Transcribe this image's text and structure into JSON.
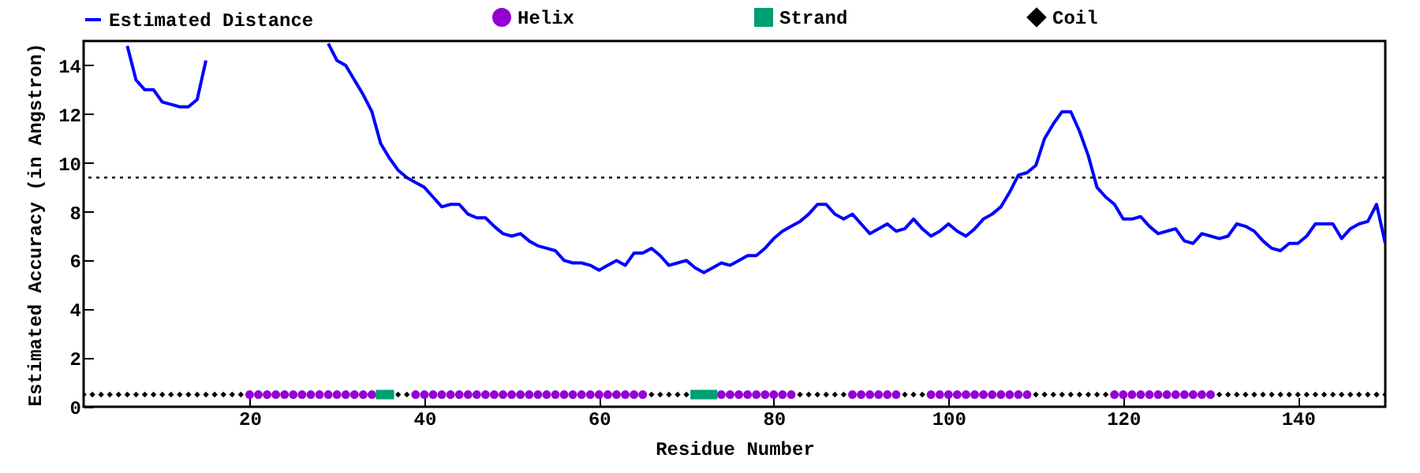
{
  "chart_data": {
    "type": "line",
    "xlabel": "Residue Number",
    "ylabel": "Estimated Accuracy (in Angstron)",
    "xlim": [
      1,
      150
    ],
    "xticks": [
      20,
      40,
      60,
      80,
      100,
      120,
      140
    ],
    "ylim": [
      0,
      15
    ],
    "yticks": [
      0,
      2,
      4,
      6,
      8,
      10,
      12,
      14
    ],
    "grid": false,
    "legend": "top",
    "ref_lines": [
      {
        "axis": "y",
        "value": 9.4,
        "color": "#000000",
        "line_style": "dotted"
      }
    ],
    "series": [
      {
        "name": "Estimated Distance",
        "color": "#0000ff",
        "marker": "none",
        "line_style": "solid",
        "x": [
          6,
          7,
          8,
          9,
          10,
          11,
          12,
          13,
          14,
          15,
          16,
          17,
          18,
          19,
          20,
          21,
          22,
          23,
          24,
          25,
          26,
          27,
          28,
          29,
          30,
          31,
          32,
          33,
          34,
          35,
          36,
          37,
          38,
          39,
          40,
          41,
          42,
          43,
          44,
          45,
          46,
          47,
          48,
          49,
          50,
          51,
          52,
          53,
          54,
          55,
          56,
          57,
          58,
          59,
          60,
          61,
          62,
          63,
          64,
          65,
          66,
          67,
          68,
          69,
          70,
          71,
          72,
          73,
          74,
          75,
          76,
          77,
          78,
          79,
          80,
          81,
          82,
          83,
          84,
          85,
          86,
          87,
          88,
          89,
          90,
          91,
          92,
          93,
          94,
          95,
          96,
          97,
          98,
          99,
          100,
          101,
          102,
          103,
          104,
          105,
          106,
          107,
          108,
          109,
          110,
          111,
          112,
          113,
          114,
          115,
          116,
          117,
          118,
          119,
          120,
          121,
          122,
          123,
          124,
          125,
          126,
          127,
          128,
          129,
          130,
          131,
          132,
          133,
          134,
          135,
          136,
          137,
          138,
          139,
          140,
          141,
          142,
          143,
          144,
          145,
          146,
          147,
          148,
          149,
          150
        ],
        "values": [
          14.8,
          13.4,
          13.0,
          13.0,
          12.5,
          12.4,
          12.3,
          12.3,
          12.6,
          14.2,
          null,
          null,
          null,
          null,
          null,
          null,
          null,
          null,
          null,
          null,
          null,
          null,
          null,
          14.9,
          14.2,
          14.0,
          13.4,
          12.8,
          12.1,
          10.8,
          10.2,
          9.7,
          9.4,
          9.2,
          9.0,
          8.6,
          8.2,
          8.3,
          8.3,
          7.9,
          7.75,
          7.75,
          7.4,
          7.1,
          7.0,
          7.1,
          6.8,
          6.6,
          6.5,
          6.4,
          6.0,
          5.9,
          5.9,
          5.8,
          5.6,
          5.8,
          6.0,
          5.8,
          6.3,
          6.3,
          6.5,
          6.2,
          5.8,
          5.9,
          6.0,
          5.7,
          5.5,
          5.7,
          5.9,
          5.8,
          6.0,
          6.2,
          6.2,
          6.5,
          6.9,
          7.2,
          7.4,
          7.6,
          7.9,
          8.3,
          8.3,
          7.9,
          7.7,
          7.9,
          7.5,
          7.1,
          7.3,
          7.5,
          7.2,
          7.3,
          7.7,
          7.3,
          7.0,
          7.2,
          7.5,
          7.2,
          7.0,
          7.3,
          7.7,
          7.9,
          8.2,
          8.8,
          9.5,
          9.6,
          9.9,
          11.0,
          11.6,
          12.1,
          12.1,
          11.3,
          10.3,
          9.0,
          8.6,
          8.3,
          7.7,
          7.7,
          7.8,
          7.4,
          7.1,
          7.2,
          7.3,
          6.8,
          6.7,
          7.1,
          7.0,
          6.9,
          7.0,
          7.5,
          7.4,
          7.2,
          6.8,
          6.5,
          6.4,
          6.7,
          6.7,
          7.0,
          7.5,
          7.5,
          7.5,
          6.9,
          7.3,
          7.5,
          7.6,
          8.3,
          6.7
        ]
      },
      {
        "name": "Helix",
        "type": "scatter",
        "color": "#9400d3",
        "marker": "circle",
        "x": [
          20,
          21,
          22,
          23,
          24,
          25,
          26,
          27,
          28,
          29,
          30,
          31,
          32,
          33,
          34,
          39,
          40,
          41,
          42,
          43,
          44,
          45,
          46,
          47,
          48,
          49,
          50,
          51,
          52,
          53,
          54,
          55,
          56,
          57,
          58,
          59,
          60,
          61,
          62,
          63,
          64,
          65,
          74,
          75,
          76,
          77,
          78,
          79,
          80,
          81,
          82,
          89,
          90,
          91,
          92,
          93,
          94,
          98,
          99,
          100,
          101,
          102,
          103,
          104,
          105,
          106,
          107,
          108,
          109,
          119,
          120,
          121,
          122,
          123,
          124,
          125,
          126,
          127,
          128,
          129,
          130
        ],
        "values": [
          0.5,
          0.5,
          0.5,
          0.5,
          0.5,
          0.5,
          0.5,
          0.5,
          0.5,
          0.5,
          0.5,
          0.5,
          0.5,
          0.5,
          0.5,
          0.5,
          0.5,
          0.5,
          0.5,
          0.5,
          0.5,
          0.5,
          0.5,
          0.5,
          0.5,
          0.5,
          0.5,
          0.5,
          0.5,
          0.5,
          0.5,
          0.5,
          0.5,
          0.5,
          0.5,
          0.5,
          0.5,
          0.5,
          0.5,
          0.5,
          0.5,
          0.5,
          0.5,
          0.5,
          0.5,
          0.5,
          0.5,
          0.5,
          0.5,
          0.5,
          0.5,
          0.5,
          0.5,
          0.5,
          0.5,
          0.5,
          0.5,
          0.5,
          0.5,
          0.5,
          0.5,
          0.5,
          0.5,
          0.5,
          0.5,
          0.5,
          0.5,
          0.5,
          0.5,
          0.5,
          0.5,
          0.5,
          0.5,
          0.5,
          0.5,
          0.5,
          0.5,
          0.5,
          0.5,
          0.5,
          0.5
        ]
      },
      {
        "name": "Strand",
        "type": "scatter",
        "color": "#009e73",
        "marker": "square",
        "x": [
          35,
          36,
          71,
          72,
          73
        ],
        "values": [
          0.5,
          0.5,
          0.5,
          0.5,
          0.5
        ]
      },
      {
        "name": "Coil",
        "type": "scatter",
        "color": "#000000",
        "marker": "diamond",
        "x": [
          1,
          2,
          3,
          4,
          5,
          6,
          7,
          8,
          9,
          10,
          11,
          12,
          13,
          14,
          15,
          16,
          17,
          18,
          19,
          37,
          38,
          66,
          67,
          68,
          69,
          70,
          83,
          84,
          85,
          86,
          87,
          88,
          95,
          96,
          97,
          110,
          111,
          112,
          113,
          114,
          115,
          116,
          117,
          118,
          131,
          132,
          133,
          134,
          135,
          136,
          137,
          138,
          139,
          140,
          141,
          142,
          143,
          144,
          145,
          146,
          147,
          148,
          149,
          150
        ],
        "values": [
          0.5,
          0.5,
          0.5,
          0.5,
          0.5,
          0.5,
          0.5,
          0.5,
          0.5,
          0.5,
          0.5,
          0.5,
          0.5,
          0.5,
          0.5,
          0.5,
          0.5,
          0.5,
          0.5,
          0.5,
          0.5,
          0.5,
          0.5,
          0.5,
          0.5,
          0.5,
          0.5,
          0.5,
          0.5,
          0.5,
          0.5,
          0.5,
          0.5,
          0.5,
          0.5,
          0.5,
          0.5,
          0.5,
          0.5,
          0.5,
          0.5,
          0.5,
          0.5,
          0.5,
          0.5,
          0.5,
          0.5,
          0.5,
          0.5,
          0.5,
          0.5,
          0.5,
          0.5,
          0.5,
          0.5,
          0.5,
          0.5,
          0.5,
          0.5,
          0.5,
          0.5,
          0.5,
          0.5,
          0.5
        ]
      }
    ]
  }
}
